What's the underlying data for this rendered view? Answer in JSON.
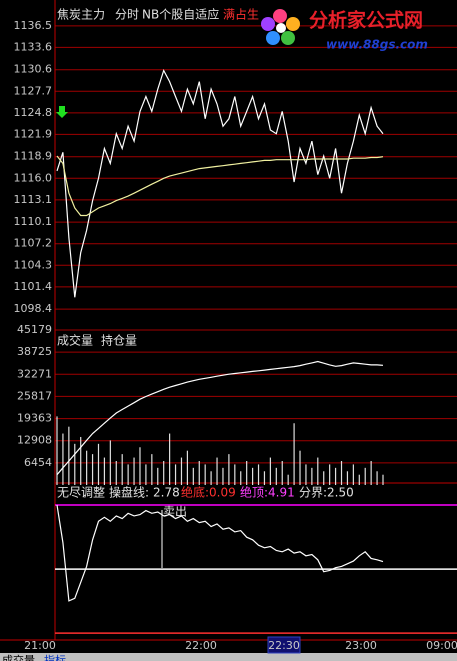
{
  "chart_data": [
    {
      "type": "line",
      "title": "焦炭主力",
      "subtitle": "分时",
      "indicator_name": "NB个股自适应",
      "note": "满占生",
      "ylim": [
        1095.6,
        1138.9
      ],
      "yticks": [
        1136.5,
        1133.6,
        1130.6,
        1127.7,
        1124.8,
        1121.9,
        1118.9,
        {
          "value": 1116,
          "label": "1116.0"
        },
        1113.1,
        1110.1,
        1107.2,
        1104.3,
        1101.4,
        1098.4
      ],
      "grid": true,
      "grid_color": "#a00000",
      "series": [
        {
          "name": "price",
          "type": "line",
          "color": "#ffffff",
          "values": [
            1117,
            1119.5,
            1108,
            1100,
            1106,
            1109,
            1113,
            1116,
            1120,
            1118,
            1122,
            1120,
            1123,
            1121,
            1125,
            1127,
            1125,
            1128,
            1130.5,
            1129,
            1127,
            1125,
            1128,
            1126,
            1129,
            1124,
            1128,
            1126,
            1123,
            1124,
            1127,
            1123,
            1125,
            1127,
            1124,
            1126,
            1122.5,
            1122,
            1125,
            1121,
            1115.5,
            1120,
            1118,
            1121,
            1116.5,
            1119,
            1116,
            1120,
            1114,
            1118,
            1121,
            1124.5,
            1122,
            1125.5,
            1123,
            1122
          ]
        },
        {
          "name": "average",
          "type": "line",
          "color": "#f0f0a0",
          "values": [
            1119,
            1118,
            1114,
            1112,
            1111,
            1111,
            1111.5,
            1112,
            1112.3,
            1112.6,
            1113,
            1113.3,
            1113.6,
            1114,
            1114.4,
            1114.8,
            1115.2,
            1115.6,
            1116,
            1116.3,
            1116.5,
            1116.7,
            1116.9,
            1117.1,
            1117.3,
            1117.4,
            1117.5,
            1117.6,
            1117.7,
            1117.8,
            1117.9,
            1118,
            1118.1,
            1118.2,
            1118.3,
            1118.4,
            1118.4,
            1118.5,
            1118.5,
            1118.5,
            1118.5,
            1118.5,
            1118.5,
            1118.6,
            1118.6,
            1118.6,
            1118.6,
            1118.6,
            1118.6,
            1118.6,
            1118.7,
            1118.7,
            1118.7,
            1118.8,
            1118.8,
            1118.9
          ]
        }
      ]
    },
    {
      "type": "bar",
      "ylim": [
        0,
        45179
      ],
      "yticks": [
        45179,
        38725,
        32271,
        25817,
        19363,
        12908,
        6454
      ],
      "grid": true,
      "grid_color": "#a00000",
      "series": [
        {
          "name": "成交量",
          "type": "bar",
          "color": "#e0e0e0",
          "values": [
            20000,
            15000,
            17000,
            12000,
            14000,
            10000,
            9000,
            12000,
            8000,
            13000,
            7000,
            9000,
            6000,
            8000,
            11000,
            6000,
            9000,
            5000,
            7000,
            15000,
            6000,
            8000,
            10000,
            5000,
            7000,
            6000,
            4000,
            8000,
            5000,
            9000,
            6000,
            4000,
            7000,
            5000,
            6000,
            4000,
            8000,
            5000,
            7000,
            3000,
            18000,
            10000,
            6000,
            5000,
            8000,
            4000,
            6000,
            5000,
            7000,
            4000,
            6000,
            3000,
            5000,
            7000,
            4000,
            3000
          ]
        },
        {
          "name": "持仓量",
          "type": "line",
          "color": "#ffffff",
          "values": [
            3000,
            5000,
            7000,
            9000,
            11000,
            13000,
            15000,
            16500,
            18000,
            19500,
            21000,
            22000,
            23000,
            24000,
            25000,
            25800,
            26500,
            27200,
            27900,
            28500,
            29000,
            29500,
            30000,
            30400,
            30800,
            31100,
            31400,
            31700,
            32000,
            32300,
            32500,
            32700,
            32900,
            33100,
            33300,
            33500,
            33700,
            33900,
            34100,
            34300,
            34500,
            34800,
            35200,
            35600,
            36000,
            35500,
            35000,
            34600,
            34800,
            35200,
            35600,
            35400,
            35200,
            35000,
            35000,
            34900
          ]
        }
      ]
    },
    {
      "type": "line",
      "title": "无尽调整",
      "annotation": "卖出",
      "ylim": [
        -0.17,
        5.74
      ],
      "series": [
        {
          "name": "操盘线:",
          "type": "line",
          "color": "#ffffff",
          "current": 2.78,
          "values": [
            4.91,
            3.5,
            1.3,
            1.4,
            2.0,
            2.6,
            3.6,
            4.3,
            4.45,
            4.3,
            4.5,
            4.4,
            4.6,
            4.5,
            4.55,
            4.7,
            4.6,
            4.65,
            4.5,
            4.55,
            4.4,
            4.5,
            4.3,
            4.4,
            4.25,
            4.3,
            4.1,
            4.2,
            4.0,
            4.05,
            3.9,
            3.95,
            3.7,
            3.6,
            3.4,
            3.3,
            3.35,
            3.2,
            3.15,
            3.25,
            3.1,
            3.15,
            3.0,
            3.05,
            2.85,
            2.4,
            2.45,
            2.55,
            2.6,
            2.7,
            2.8,
            3.0,
            3.15,
            2.9,
            2.85,
            2.78
          ]
        }
      ],
      "levels": [
        {
          "name": "绝底:",
          "value": 0.09,
          "color": "#ff3030"
        },
        {
          "name": "绝顶:",
          "value": 4.91,
          "color": "#ff00ff"
        },
        {
          "name": "分界:",
          "value": 2.5,
          "value_label": "2.50",
          "color": "#ffffff"
        }
      ]
    }
  ],
  "x_axis": {
    "labels": [
      "21:00",
      "22:00",
      "22:30",
      "23:00",
      "09:00"
    ],
    "highlight_index": 2
  },
  "footer": {
    "tabs": [
      "成交量",
      "指标"
    ]
  },
  "watermark": {
    "name": "分析家公式网",
    "url": "www.88gs.com"
  }
}
